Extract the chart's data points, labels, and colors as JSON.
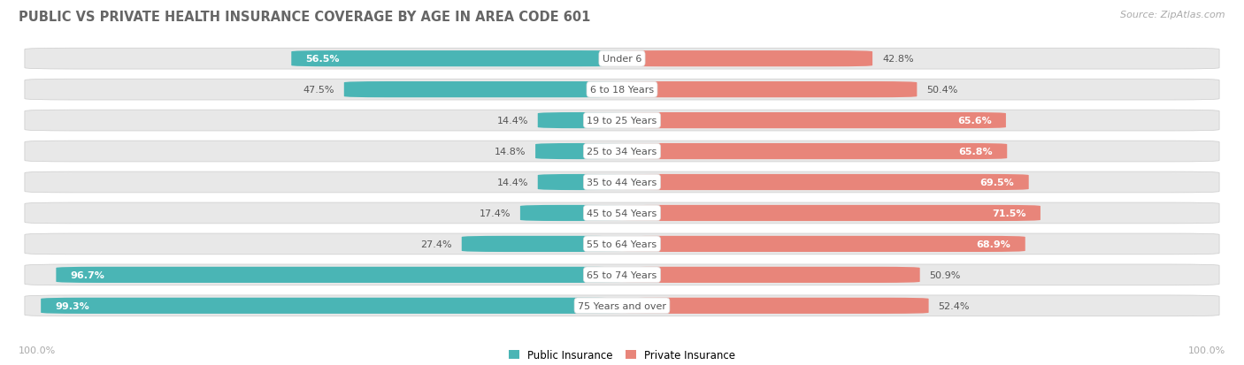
{
  "title": "PUBLIC VS PRIVATE HEALTH INSURANCE COVERAGE BY AGE IN AREA CODE 601",
  "source": "Source: ZipAtlas.com",
  "categories": [
    "Under 6",
    "6 to 18 Years",
    "19 to 25 Years",
    "25 to 34 Years",
    "35 to 44 Years",
    "45 to 54 Years",
    "55 to 64 Years",
    "65 to 74 Years",
    "75 Years and over"
  ],
  "public_values": [
    56.5,
    47.5,
    14.4,
    14.8,
    14.4,
    17.4,
    27.4,
    96.7,
    99.3
  ],
  "private_values": [
    42.8,
    50.4,
    65.6,
    65.8,
    69.5,
    71.5,
    68.9,
    50.9,
    52.4
  ],
  "public_color": "#4ab5b5",
  "private_color": "#e8857a",
  "bg_color": "#ffffff",
  "row_bg_color": "#e8e8e8",
  "title_color": "#666666",
  "label_color": "#aaaaaa",
  "text_color_dark": "#555555",
  "text_color_white": "#ffffff",
  "max_value": 100.0,
  "pub_white_threshold": 50,
  "priv_white_threshold": 60
}
